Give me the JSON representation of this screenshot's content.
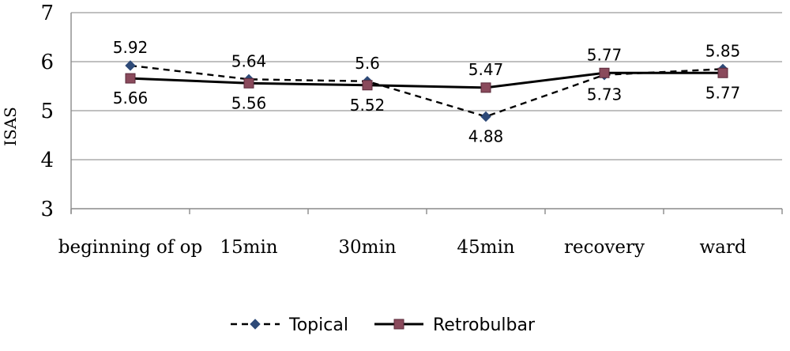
{
  "chart_data": {
    "type": "line",
    "title": "",
    "xlabel": "",
    "ylabel": "ISAS",
    "ylim": [
      3,
      7
    ],
    "yticks": [
      "3",
      "4",
      "5",
      "6",
      "7"
    ],
    "grid": true,
    "legend_position": "bottom",
    "categories": [
      "beginning of op",
      "15min",
      "30min",
      "45min",
      "recovery",
      "ward"
    ],
    "series": [
      {
        "name": "Topical",
        "values": [
          5.92,
          5.64,
          5.6,
          4.88,
          5.73,
          5.85
        ],
        "labels": [
          "5.92",
          "5.64",
          "5.6",
          "4.88",
          "5.73",
          "5.85"
        ],
        "color": "#2e4a78",
        "line_color": "#000000",
        "dash": "dashed",
        "marker": "diamond"
      },
      {
        "name": "Retrobulbar",
        "values": [
          5.66,
          5.56,
          5.52,
          5.47,
          5.77,
          5.77
        ],
        "labels": [
          "5.66",
          "5.56",
          "5.52",
          "5.47",
          "5.77",
          "5.77"
        ],
        "color": "#8a4a5c",
        "line_color": "#000000",
        "dash": "solid",
        "marker": "square"
      }
    ]
  }
}
